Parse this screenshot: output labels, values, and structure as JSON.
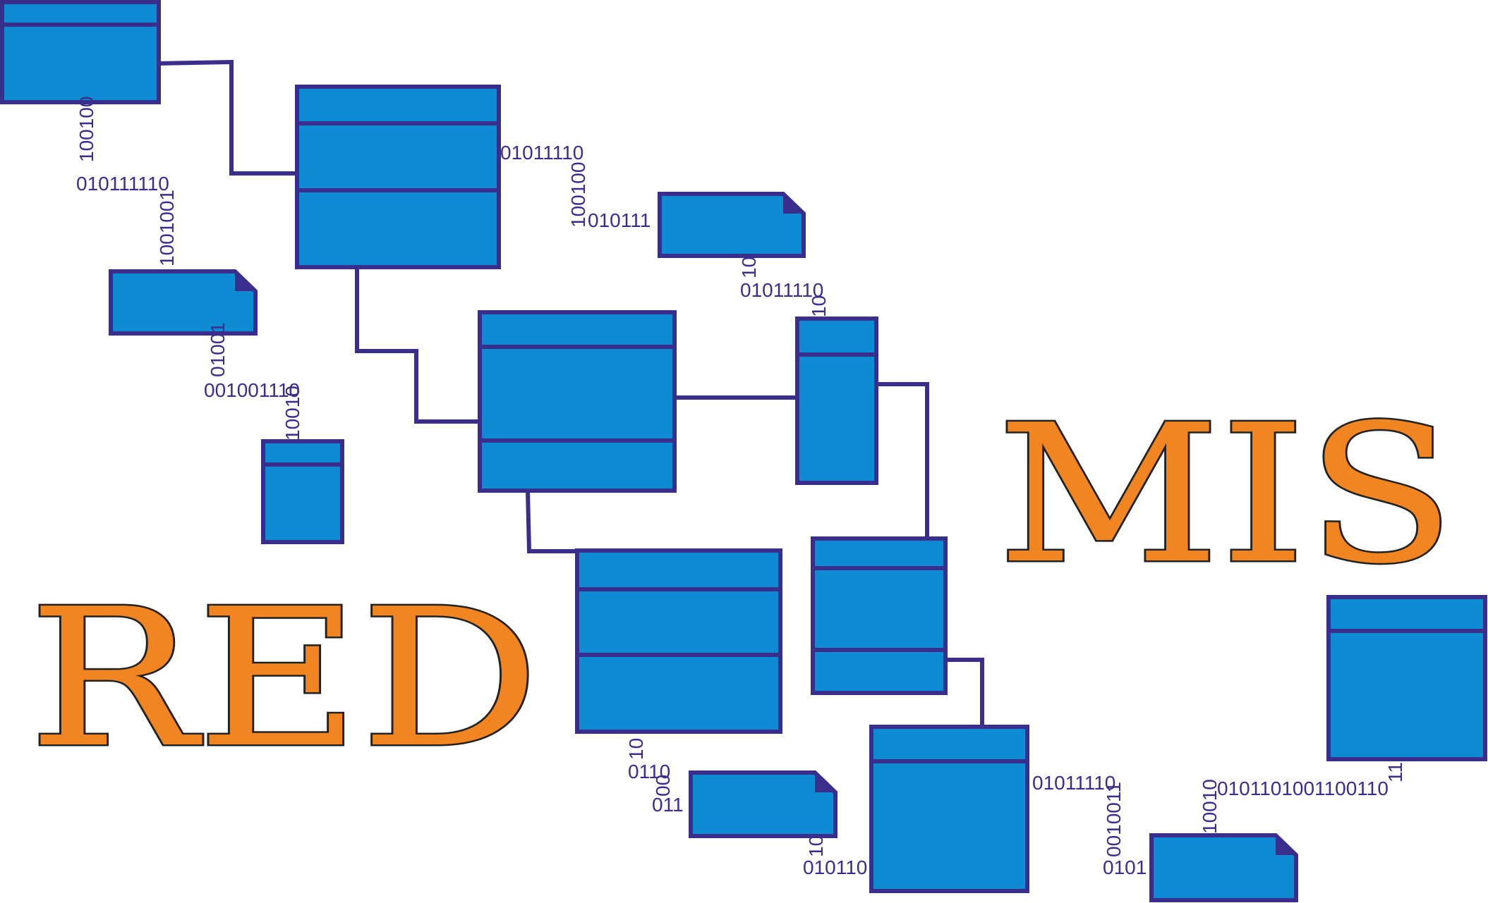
{
  "title_words": {
    "left": "RED",
    "right": "MIS"
  },
  "binary_labels": [
    "100100",
    "010111110",
    "1001001",
    "01011110",
    "100100",
    "010111",
    "10",
    "01011110",
    "10",
    "01001",
    "001001110",
    "10010",
    "10",
    "0110",
    "00",
    "011",
    "10",
    "010110",
    "01011110",
    "0010011",
    "0101",
    "10010",
    "0101101001100110",
    "11"
  ],
  "colors": {
    "box_fill": "#0e8bd3",
    "box_outline": "#3a2e8c",
    "word_fill": "#f18521",
    "word_outline": "#222222",
    "binary_text": "#3a2e8c"
  }
}
